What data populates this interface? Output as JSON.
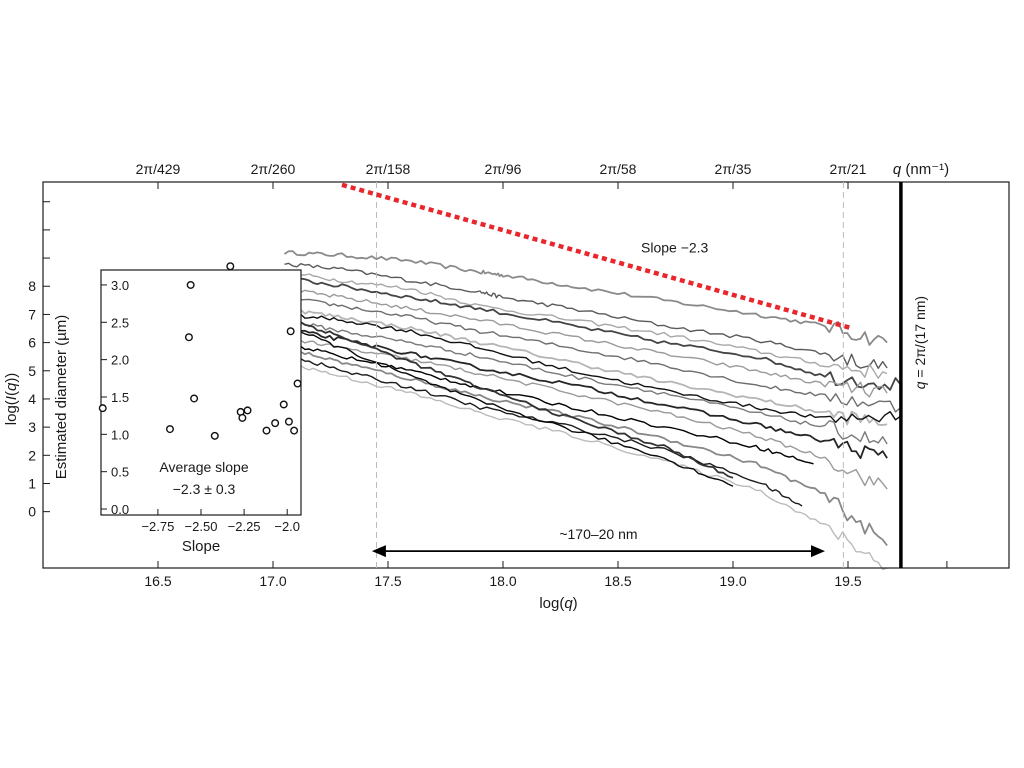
{
  "chart_data": [
    {
      "type": "line",
      "xlabel": "log(q)",
      "ylabel": "log(I(q))",
      "x_ticks": [
        16.5,
        17.0,
        17.5,
        18.0,
        18.5,
        19.0,
        19.5
      ],
      "x_tick_labels": [
        "16.5",
        "17.0",
        "17.5",
        "18.0",
        "18.5",
        "19.0",
        "19.5"
      ],
      "y_ticks": [
        0,
        1,
        2,
        3,
        4,
        5,
        6,
        7,
        8
      ],
      "y_tick_labels": [
        "0",
        "1",
        "2",
        "3",
        "4",
        "5",
        "6",
        "7",
        "8"
      ],
      "xlim": [
        16.0,
        20.2
      ],
      "ylim": [
        -2.0,
        11.7
      ],
      "top_axis": {
        "label": "q (nm⁻¹)",
        "ticks": [
          {
            "label": "2π/429",
            "x": 16.5
          },
          {
            "label": "2π/260",
            "x": 17.0
          },
          {
            "label": "2π/158",
            "x": 17.5
          },
          {
            "label": "2π/96",
            "x": 18.0
          },
          {
            "label": "2π/58",
            "x": 18.5
          },
          {
            "label": "2π/35",
            "x": 19.0
          },
          {
            "label": "2π/21",
            "x": 19.5
          }
        ]
      },
      "reference_line": {
        "label": "Slope −2.3",
        "slope": -2.3,
        "x": [
          17.3,
          19.52
        ],
        "y": [
          11.6,
          6.5
        ],
        "color": "#e8262b",
        "style": "dotted"
      },
      "range_lines_x": [
        17.45,
        19.48
      ],
      "range_arrow": {
        "label": "~170–20 nm",
        "x": [
          17.43,
          19.4
        ],
        "y": -1.4
      },
      "cutoff_line": {
        "label": "q = 2π/(17 nm)",
        "x": 19.73
      },
      "grid": false,
      "series": [
        {
          "color": "#8a8a8a",
          "x": [
            17.05,
            17.3,
            17.6,
            17.9,
            18.0,
            18.3,
            18.7,
            19.1,
            19.4,
            19.67
          ],
          "y": [
            9.2,
            9.1,
            8.9,
            8.5,
            8.4,
            8.0,
            7.5,
            7.0,
            6.6,
            6.0
          ]
        },
        {
          "color": "#5a5a5a",
          "x": [
            17.05,
            17.3,
            17.6,
            17.9,
            18.0,
            18.3,
            18.7,
            19.1,
            19.4,
            19.67
          ],
          "y": [
            8.8,
            8.6,
            8.2,
            7.8,
            7.6,
            7.2,
            6.6,
            6.1,
            5.6,
            5.1
          ]
        },
        {
          "color": "#a8a8a8",
          "x": [
            17.05,
            17.3,
            17.6,
            17.9,
            18.3,
            18.7,
            19.1,
            19.4,
            19.67
          ],
          "y": [
            8.5,
            8.2,
            7.9,
            7.3,
            6.8,
            6.3,
            5.7,
            5.2,
            4.9
          ]
        },
        {
          "color": "#444444",
          "x": [
            17.05,
            17.3,
            17.6,
            17.9,
            18.3,
            18.7,
            19.1,
            19.4,
            19.73
          ],
          "y": [
            8.3,
            8.0,
            7.6,
            7.2,
            6.6,
            6.0,
            5.5,
            4.8,
            4.5
          ]
        },
        {
          "color": "#9a9a9a",
          "x": [
            17.05,
            17.3,
            17.6,
            17.9,
            18.3,
            18.7,
            19.1,
            19.4,
            19.67
          ],
          "y": [
            7.9,
            7.6,
            7.2,
            6.8,
            6.2,
            5.6,
            5.0,
            4.5,
            4.2
          ]
        },
        {
          "color": "#6e6e6e",
          "x": [
            17.05,
            17.3,
            17.6,
            17.9,
            18.3,
            18.7,
            19.1,
            19.4,
            19.73
          ],
          "y": [
            7.6,
            7.3,
            6.9,
            6.4,
            5.8,
            5.2,
            4.5,
            4.1,
            3.7
          ]
        },
        {
          "color": "#b5b5b5",
          "x": [
            17.05,
            17.3,
            17.6,
            17.9,
            18.3,
            18.7,
            19.1,
            19.4,
            19.67
          ],
          "y": [
            7.2,
            6.9,
            6.5,
            6.0,
            5.3,
            4.6,
            4.0,
            3.5,
            3.1
          ]
        },
        {
          "color": "#111111",
          "x": [
            17.05,
            17.3,
            17.6,
            17.9,
            18.3,
            18.7,
            19.1,
            19.4,
            19.73
          ],
          "y": [
            7.0,
            6.8,
            6.4,
            5.8,
            5.0,
            4.3,
            3.7,
            3.3,
            3.4
          ]
        },
        {
          "color": "#7a7a7a",
          "x": [
            17.05,
            17.3,
            17.6,
            17.9,
            18.3,
            18.7,
            19.1,
            19.4,
            19.67
          ],
          "y": [
            6.8,
            6.4,
            6.0,
            5.5,
            4.8,
            4.2,
            3.5,
            3.0,
            2.4
          ]
        },
        {
          "color": "#252525",
          "x": [
            17.05,
            17.3,
            17.6,
            17.9,
            18.3,
            18.7,
            19.1,
            19.4,
            19.67
          ],
          "y": [
            6.5,
            6.1,
            5.6,
            5.1,
            4.5,
            3.8,
            3.1,
            2.5,
            1.9
          ]
        },
        {
          "color": "#999999",
          "x": [
            17.05,
            17.3,
            17.6,
            17.9,
            18.3,
            18.7,
            19.1,
            19.4,
            19.67
          ],
          "y": [
            6.2,
            5.8,
            5.4,
            4.9,
            4.2,
            3.5,
            2.7,
            1.9,
            0.8
          ]
        },
        {
          "color": "#000000",
          "x": [
            17.05,
            17.3,
            17.6,
            17.9,
            18.3,
            18.7,
            19.1,
            19.35
          ],
          "y": [
            6.0,
            5.5,
            5.0,
            4.4,
            3.7,
            3.0,
            2.3,
            1.7
          ]
        },
        {
          "color": "#888888",
          "x": [
            17.05,
            17.3,
            17.6,
            17.9,
            18.3,
            18.7,
            19.1,
            19.4,
            19.67
          ],
          "y": [
            5.8,
            5.3,
            4.7,
            4.1,
            3.4,
            2.6,
            1.7,
            0.6,
            -1.2
          ]
        },
        {
          "color": "#1c1c1c",
          "x": [
            17.05,
            17.3,
            17.6,
            17.9,
            18.3,
            18.7,
            19.1,
            19.3
          ],
          "y": [
            5.6,
            5.0,
            4.4,
            3.7,
            3.0,
            2.2,
            1.1,
            0.2
          ]
        },
        {
          "color": "#bbbbbb",
          "x": [
            17.05,
            17.3,
            17.6,
            17.9,
            18.3,
            18.7,
            19.1,
            19.4,
            19.67
          ],
          "y": [
            5.3,
            4.8,
            4.2,
            3.5,
            2.7,
            1.8,
            0.8,
            -0.5,
            -2.0
          ]
        },
        {
          "color": "#333333",
          "x": [
            17.05,
            17.3,
            17.6,
            17.9,
            18.3,
            18.7,
            19.0
          ],
          "y": [
            6.9,
            6.2,
            5.3,
            4.4,
            3.3,
            2.3,
            1.2
          ]
        },
        {
          "color": "#0a0a0a",
          "x": [
            17.05,
            17.3,
            17.6,
            17.9,
            18.3,
            18.7,
            19.0
          ],
          "y": [
            6.6,
            5.8,
            4.8,
            3.9,
            2.9,
            1.9,
            0.9
          ]
        }
      ]
    },
    {
      "type": "scatter",
      "xlabel": "Slope",
      "ylabel": "Estimated diameter (µm)",
      "x_ticks": [
        -2.75,
        -2.5,
        -2.25,
        -2.0
      ],
      "x_tick_labels": [
        "−2.75",
        "−2.50",
        "−2.25",
        "−2.0"
      ],
      "y_ticks": [
        0.0,
        0.5,
        1.0,
        1.5,
        2.0,
        2.5,
        3.0
      ],
      "y_tick_labels": [
        "0.0",
        "0.5",
        "1.0",
        "1.5",
        "2.0",
        "2.5",
        "3.0"
      ],
      "xlim": [
        -3.08,
        -1.92
      ],
      "ylim": [
        -0.08,
        3.2
      ],
      "annotation": [
        "Average slope",
        "−2.3 ± 0.3"
      ],
      "points": {
        "x": [
          -3.07,
          -2.68,
          -2.57,
          -2.56,
          -2.54,
          -2.42,
          -2.33,
          -2.27,
          -2.26,
          -2.23,
          -2.12,
          -2.07,
          -2.02,
          -1.99,
          -1.98,
          -1.96,
          -1.94
        ],
        "y": [
          1.35,
          1.07,
          2.3,
          3.0,
          1.48,
          0.98,
          3.25,
          1.3,
          1.22,
          1.32,
          1.05,
          1.15,
          1.4,
          1.17,
          2.38,
          1.05,
          1.68
        ]
      }
    }
  ]
}
